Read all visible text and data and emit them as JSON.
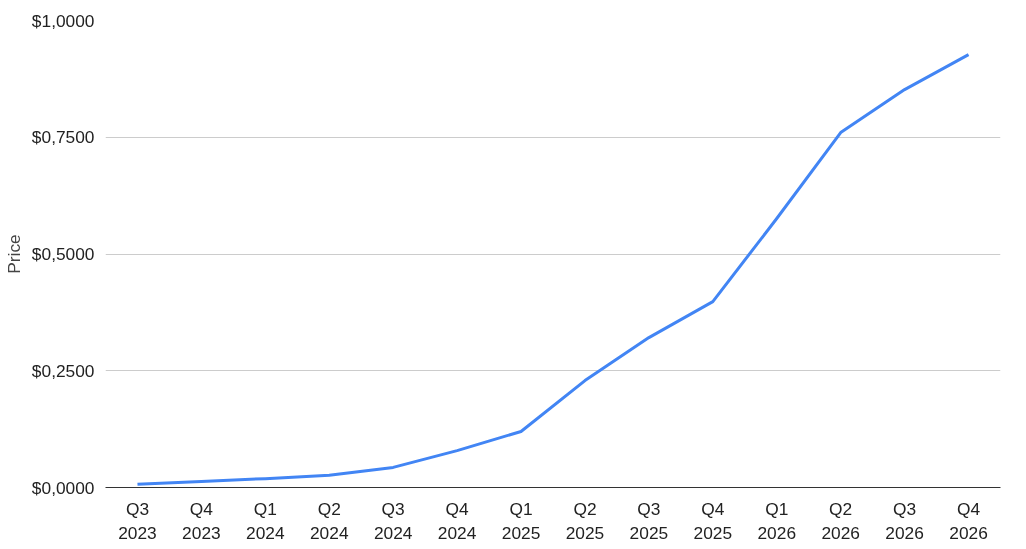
{
  "chart_data": {
    "type": "line",
    "ylabel": "Price",
    "categories": [
      "Q3\n2023",
      "Q4\n2023",
      "Q1\n2024",
      "Q2\n2024",
      "Q3\n2024",
      "Q4\n2024",
      "Q1\n2025",
      "Q2\n2025",
      "Q3\n2025",
      "Q4\n2025",
      "Q1\n2026",
      "Q2\n2026",
      "Q3\n2026",
      "Q4\n2026"
    ],
    "series": [
      {
        "color": "#4285f4",
        "values": [
          0.007,
          0.013,
          0.019,
          0.026,
          0.043,
          0.079,
          0.12,
          0.229,
          0.321,
          0.398,
          0.576,
          0.76,
          0.852,
          0.927
        ]
      }
    ],
    "ylim": [
      0,
      1
    ],
    "yticks": [
      {
        "value": 0,
        "label": "$0,0000"
      },
      {
        "value": 0.25,
        "label": "$0,2500"
      },
      {
        "value": 0.5,
        "label": "$0,5000"
      },
      {
        "value": 0.75,
        "label": "$0,7500"
      },
      {
        "value": 1,
        "label": "$1,0000"
      }
    ],
    "grid": "y",
    "marker": "none",
    "line_style": "solid"
  }
}
